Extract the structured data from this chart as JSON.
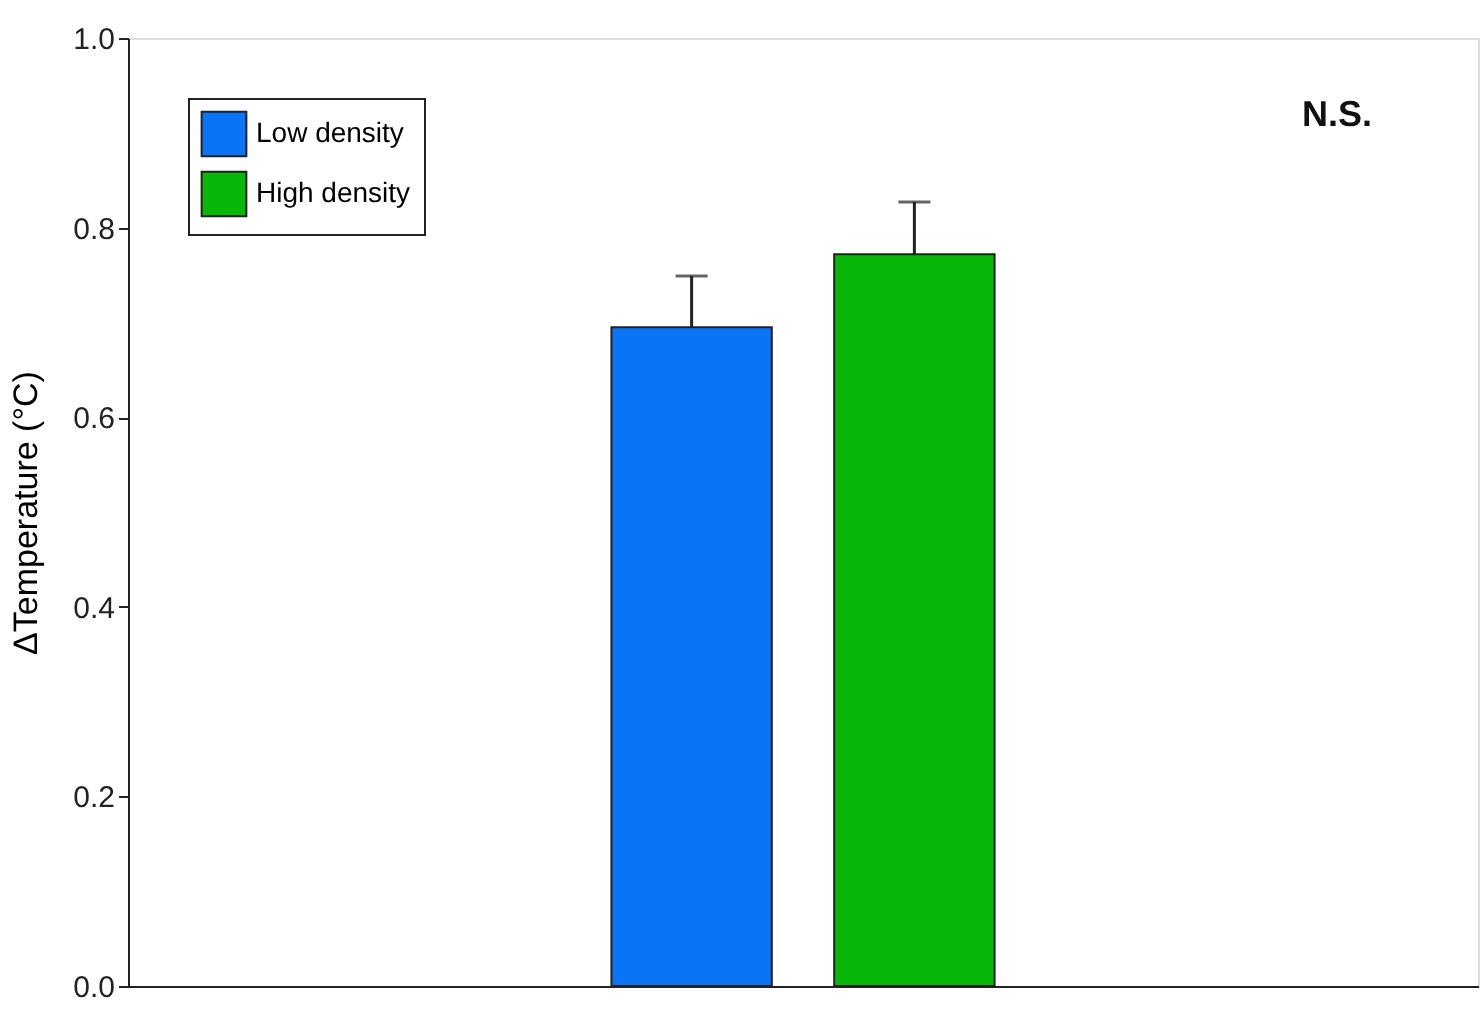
{
  "chart_data": {
    "type": "bar",
    "ylabel": "ΔTemperature (°C)",
    "categories": [
      null
    ],
    "series": [
      {
        "name": "Low density",
        "color": "#0a74f7",
        "values": [
          0.695
        ],
        "errors": [
          0.054
        ]
      },
      {
        "name": "High density",
        "color": "#08b808",
        "values": [
          0.772
        ],
        "errors": [
          0.055
        ]
      }
    ],
    "ylim": [
      0,
      1.0
    ],
    "yticks": [
      {
        "value": 0,
        "label": "0.0"
      },
      {
        "value": 0.2,
        "label": "0.2"
      },
      {
        "value": 0.4,
        "label": "0.4"
      },
      {
        "value": 0.6,
        "label": "0.6"
      },
      {
        "value": 0.8,
        "label": "0.8"
      },
      {
        "value": 1.0,
        "label": "1.0"
      }
    ],
    "tick_labels": "y",
    "grid": false,
    "legend": "top left",
    "annotations": [
      "N.S."
    ]
  }
}
